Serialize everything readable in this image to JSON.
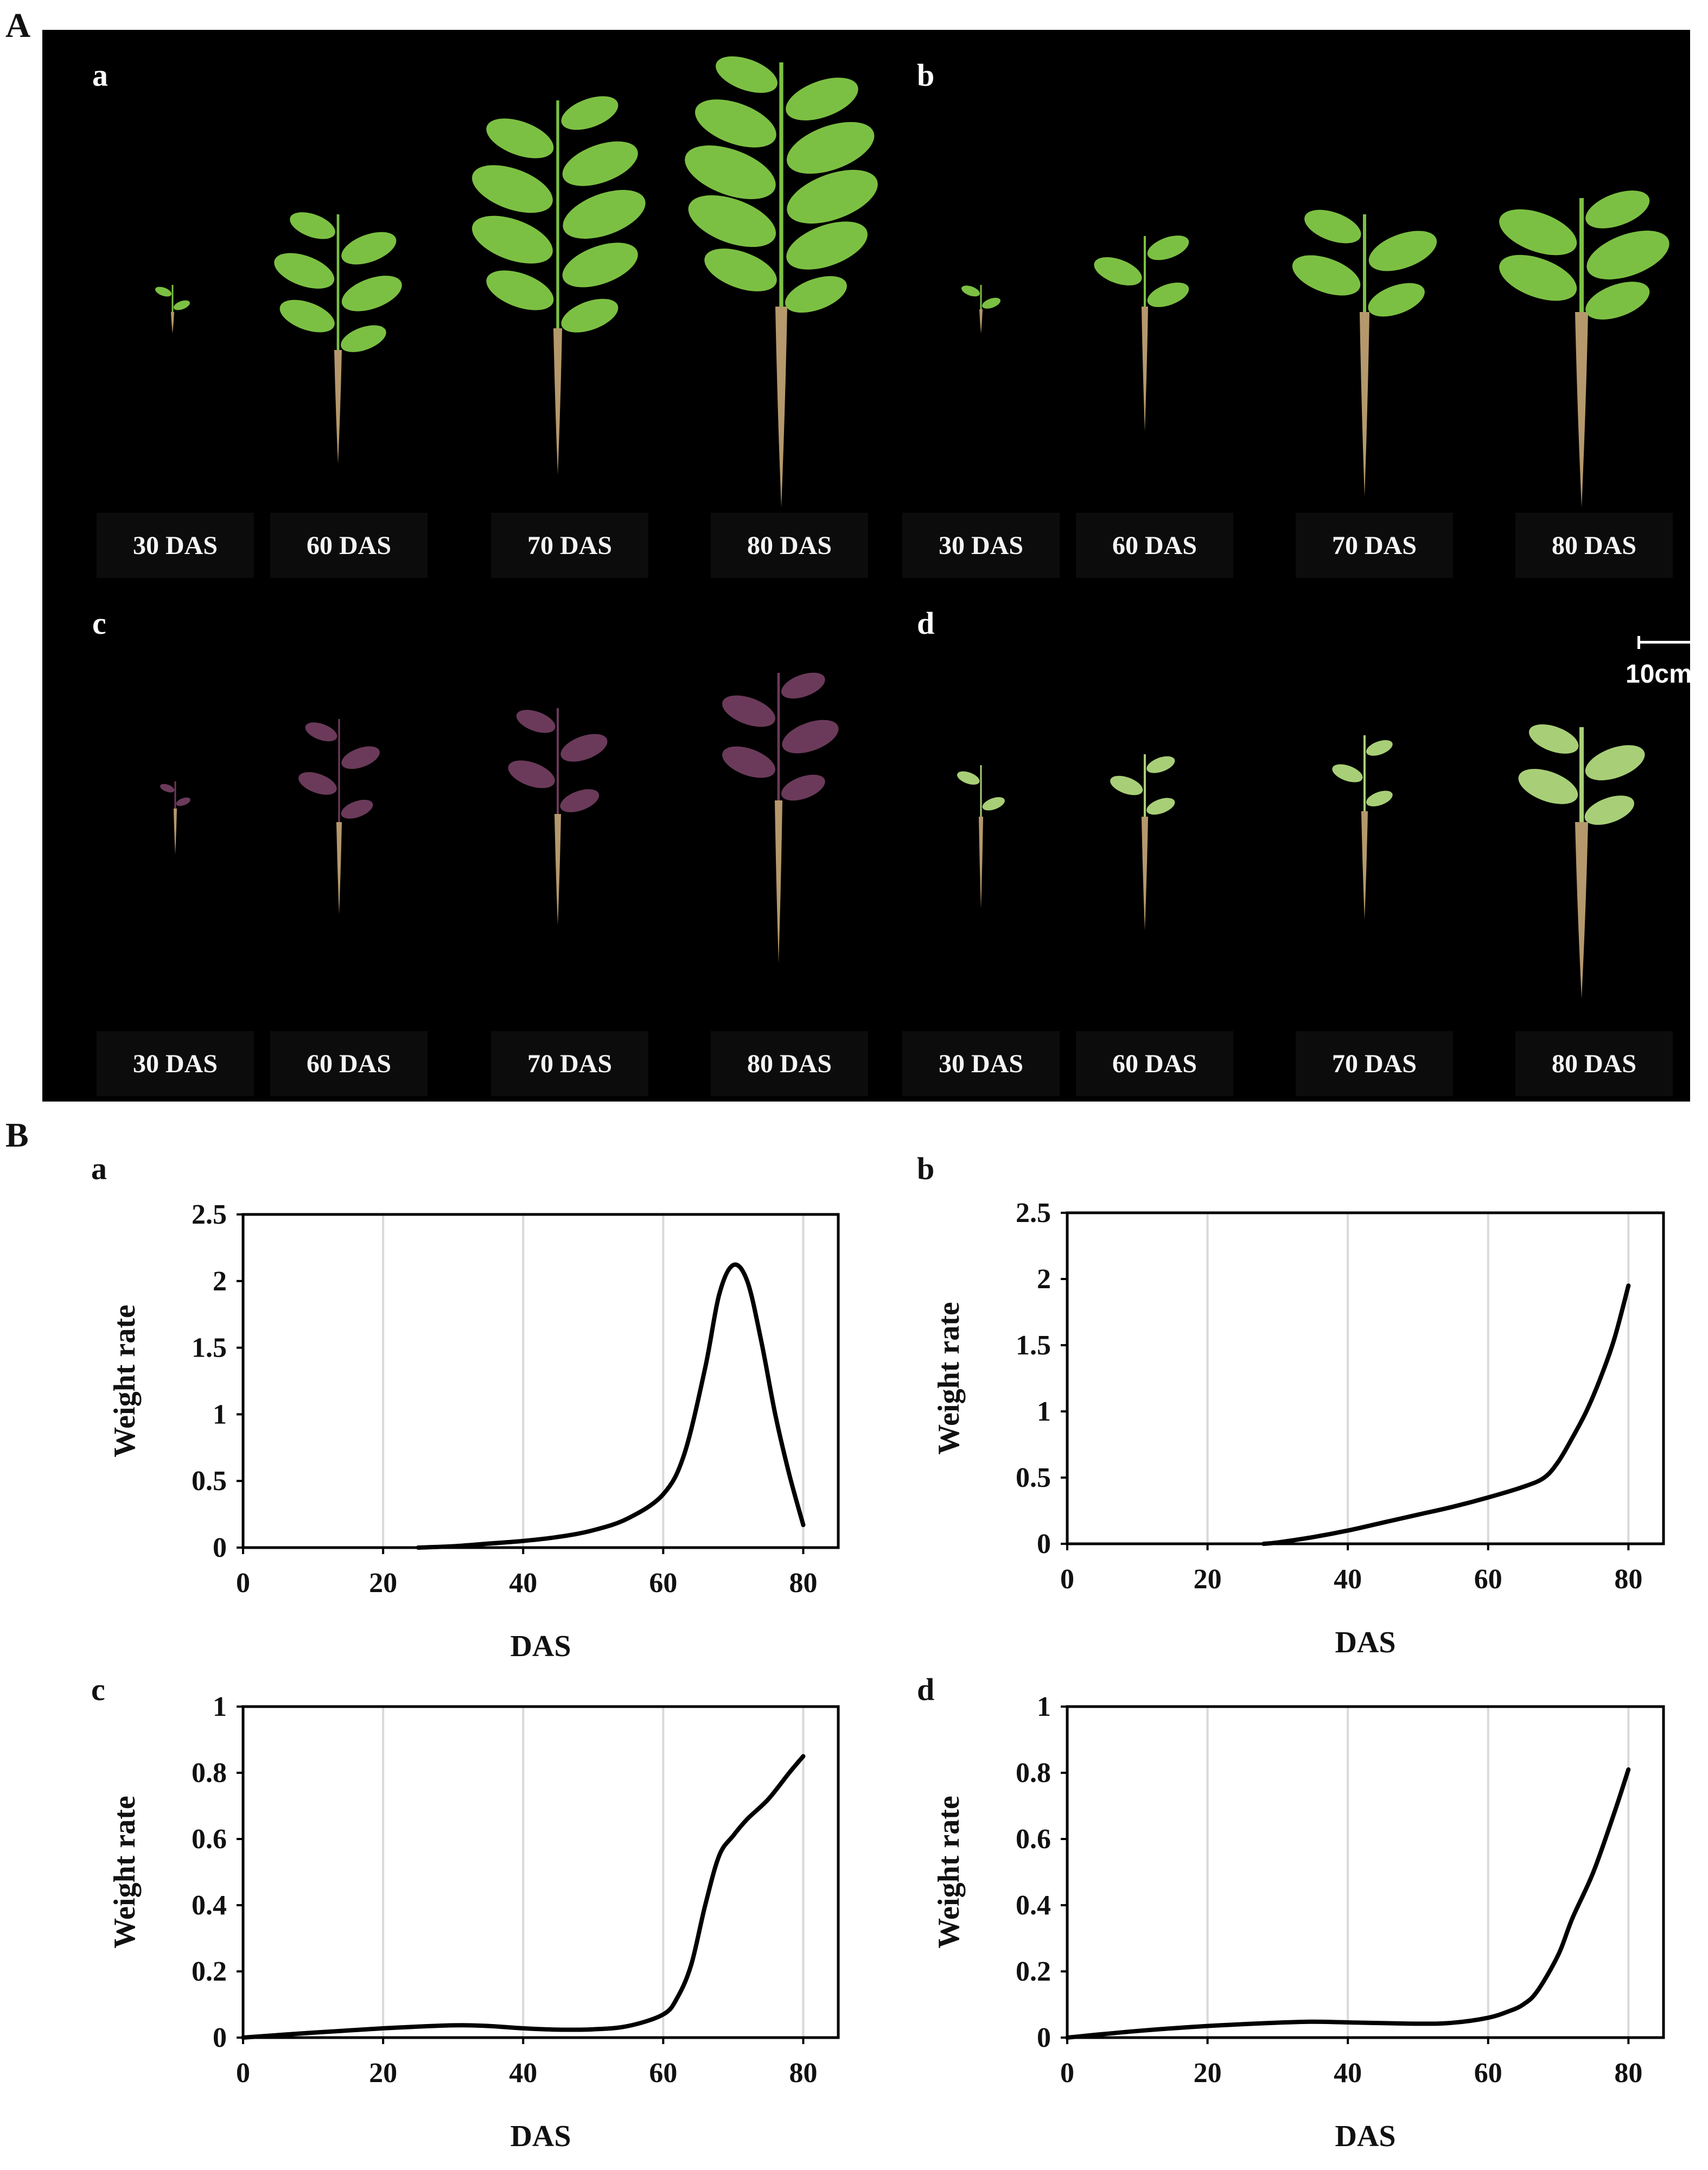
{
  "figure": {
    "panel_A_label": "A",
    "panel_B_label": "B",
    "photo_panels": [
      {
        "label": "a",
        "das": [
          "30 DAS",
          "60 DAS",
          "70 DAS",
          "80 DAS"
        ]
      },
      {
        "label": "b",
        "das": [
          "30 DAS",
          "60 DAS",
          "70 DAS",
          "80 DAS"
        ]
      },
      {
        "label": "c",
        "das": [
          "30 DAS",
          "60 DAS",
          "70 DAS",
          "80 DAS"
        ]
      },
      {
        "label": "d",
        "das": [
          "30 DAS",
          "60 DAS",
          "70 DAS",
          "80 DAS"
        ]
      }
    ],
    "scale_bar": "10cm",
    "colors": {
      "photo_background": "#000000",
      "leaf_green": "#7cc043",
      "leaf_purple": "#6b3a5a",
      "leaf_pale": "#a8cf77",
      "root": "#c9a878",
      "line": "#000000",
      "grid": "#d9d9d9"
    }
  },
  "chart_data": [
    {
      "panel": "a",
      "type": "line",
      "xlabel": "DAS",
      "ylabel": "Weight rate",
      "xlim": [
        0,
        80
      ],
      "ylim": [
        0,
        2.5
      ],
      "xticks": [
        "0",
        "20",
        "40",
        "60",
        "80"
      ],
      "yticks": [
        "0",
        "0.5",
        "1",
        "1.5",
        "2",
        "2.5"
      ],
      "grid": "vertical",
      "x": [
        25,
        30,
        35,
        40,
        45,
        50,
        55,
        60,
        63,
        66,
        68,
        70,
        72,
        74,
        76,
        78,
        80
      ],
      "y": [
        0,
        0.01,
        0.03,
        0.05,
        0.08,
        0.13,
        0.22,
        0.4,
        0.7,
        1.35,
        1.9,
        2.12,
        2.0,
        1.55,
        1.0,
        0.55,
        0.17
      ]
    },
    {
      "panel": "b",
      "type": "line",
      "xlabel": "DAS",
      "ylabel": "Weight rate",
      "xlim": [
        0,
        80
      ],
      "ylim": [
        0,
        2.5
      ],
      "xticks": [
        "0",
        "20",
        "40",
        "60",
        "80"
      ],
      "yticks": [
        "0",
        "0.5",
        "1",
        "1.5",
        "2",
        "2.5"
      ],
      "grid": "vertical",
      "x": [
        28,
        30,
        35,
        40,
        45,
        50,
        55,
        60,
        65,
        68,
        70,
        72,
        74,
        76,
        78,
        80
      ],
      "y": [
        0,
        0.01,
        0.05,
        0.1,
        0.16,
        0.22,
        0.28,
        0.35,
        0.43,
        0.5,
        0.62,
        0.8,
        1.0,
        1.25,
        1.55,
        1.95
      ]
    },
    {
      "panel": "c",
      "type": "line",
      "xlabel": "DAS",
      "ylabel": "Weight rate",
      "xlim": [
        0,
        80
      ],
      "ylim": [
        0,
        1
      ],
      "xticks": [
        "0",
        "20",
        "40",
        "60",
        "80"
      ],
      "yticks": [
        "0",
        "0.2",
        "0.4",
        "0.6",
        "0.8",
        "1"
      ],
      "grid": "vertical",
      "x": [
        0,
        10,
        20,
        30,
        35,
        40,
        45,
        50,
        55,
        60,
        62,
        64,
        66,
        68,
        70,
        72,
        75,
        78,
        80
      ],
      "y": [
        0,
        0.015,
        0.028,
        0.037,
        0.035,
        0.028,
        0.024,
        0.025,
        0.035,
        0.07,
        0.12,
        0.22,
        0.4,
        0.55,
        0.61,
        0.66,
        0.72,
        0.8,
        0.85
      ]
    },
    {
      "panel": "d",
      "type": "line",
      "xlabel": "DAS",
      "ylabel": "Weight rate",
      "xlim": [
        0,
        80
      ],
      "ylim": [
        0,
        1
      ],
      "xticks": [
        "0",
        "20",
        "40",
        "60",
        "80"
      ],
      "yticks": [
        "0",
        "0.2",
        "0.4",
        "0.6",
        "0.8",
        "1"
      ],
      "grid": "vertical",
      "x": [
        0,
        10,
        20,
        30,
        35,
        40,
        50,
        55,
        60,
        63,
        65,
        67,
        70,
        72,
        75,
        78,
        80
      ],
      "y": [
        0,
        0.02,
        0.035,
        0.045,
        0.048,
        0.046,
        0.042,
        0.045,
        0.06,
        0.08,
        0.1,
        0.14,
        0.25,
        0.36,
        0.5,
        0.68,
        0.81
      ]
    }
  ]
}
